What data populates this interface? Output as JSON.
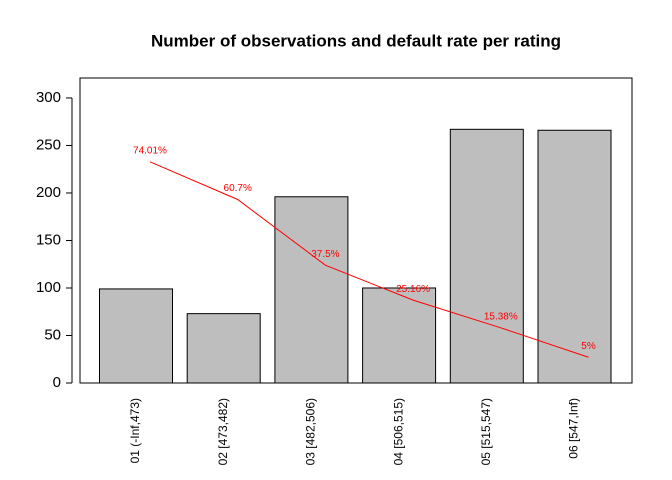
{
  "chart_data": {
    "type": "bar",
    "title": "Number of observations and default rate per rating",
    "categories": [
      "01 (-Inf,473)",
      "02 [473,482)",
      "03 [482,506)",
      "04 [506,515)",
      "05 [515,547)",
      "06 [547,Inf)"
    ],
    "values": [
      99,
      73,
      196,
      100,
      267,
      266
    ],
    "color": "#bebebe",
    "ylim": [
      0,
      321
    ],
    "yticks": [
      0,
      50,
      100,
      150,
      200,
      250,
      300
    ],
    "y2lim": [
      -4.1,
      103.6
    ],
    "series": [
      {
        "color": "#ff0000",
        "axis": "y2",
        "values": [
          74.01,
          60.7,
          37.5,
          25.16,
          15.38,
          5
        ],
        "value_labels": [
          "74.01%",
          "60.7%",
          "37.5%",
          "25.16%",
          "15.38%",
          "5%"
        ]
      }
    ]
  }
}
